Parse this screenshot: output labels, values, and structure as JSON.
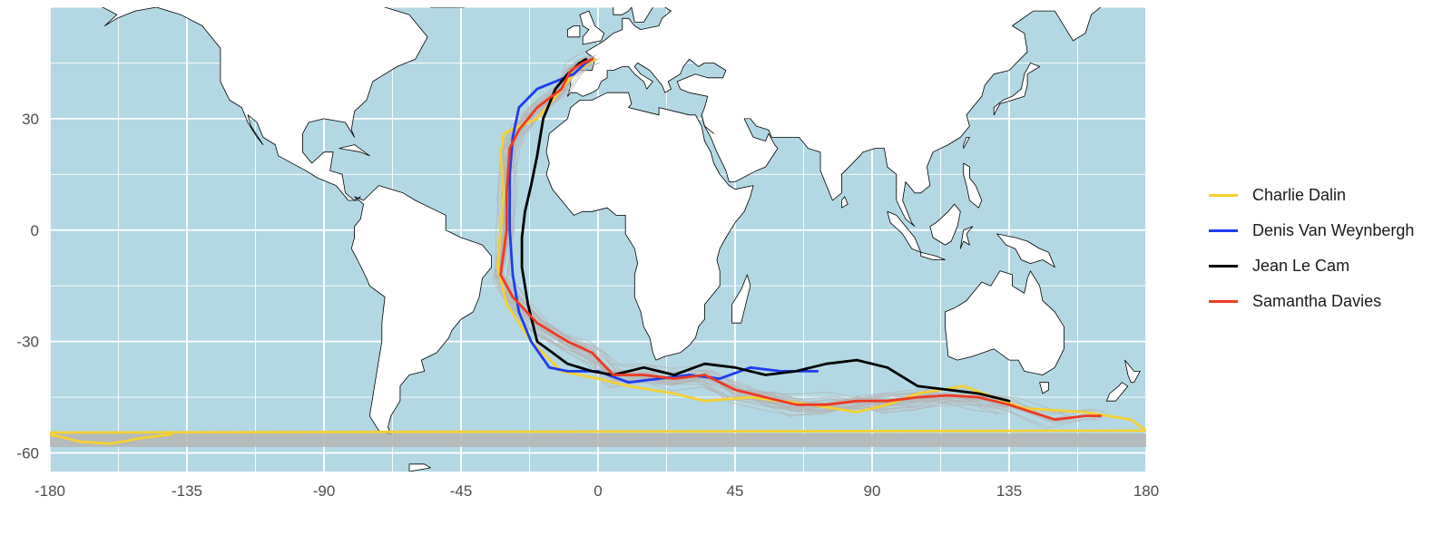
{
  "map": {
    "type": "track-map",
    "projection": "equirectangular",
    "xlim": [
      -180,
      180
    ],
    "ylim": [
      -65,
      60
    ],
    "x_ticks": [
      -180,
      -135,
      -90,
      -45,
      0,
      45,
      90,
      135,
      180
    ],
    "y_ticks": [
      -60,
      -30,
      0,
      30
    ],
    "ocean_color": "#b3d8e3",
    "land_color": "#ffffff",
    "border_color": "#000000",
    "grid": true,
    "legend_position": "right",
    "colors": {
      "Charlie Dalin": "#f5d033",
      "Denis Van Weynbergh": "#1f3cf0",
      "Jean Le Cam": "#000000",
      "Samantha Davies": "#ee3a24",
      "others": "#b5b5b5"
    }
  },
  "legend": {
    "items": [
      {
        "label": "Charlie Dalin",
        "color": "#f5d033"
      },
      {
        "label": "Denis Van Weynbergh",
        "color": "#1f3cf0"
      },
      {
        "label": "Jean Le Cam",
        "color": "#000000"
      },
      {
        "label": "Samantha Davies",
        "color": "#ee3a24"
      }
    ]
  },
  "chart_data": {
    "type": "line",
    "xlim": [
      -180,
      180
    ],
    "ylim": [
      -65,
      60
    ],
    "series": [
      {
        "name": "Charlie Dalin",
        "color": "#f5d033",
        "x": [
          -1,
          -3,
          -8,
          -12,
          -20,
          -26,
          -31,
          -32,
          -31,
          -32,
          -33,
          -30,
          -22,
          -12,
          0,
          10,
          25,
          35,
          50,
          70,
          85,
          95,
          105,
          120,
          140,
          160,
          175,
          180
        ],
        "y": [
          46,
          45,
          42,
          38,
          30,
          28,
          26,
          20,
          10,
          0,
          -10,
          -20,
          -30,
          -38,
          -40,
          -42,
          -44,
          -46,
          -45,
          -47,
          -49,
          -47,
          -44,
          -42,
          -48,
          -49,
          -51,
          -54
        ]
      },
      {
        "name": "Charlie Dalin",
        "color": "#f5d033",
        "x": [
          -180,
          -170,
          -160,
          -150,
          -140
        ],
        "y": [
          -55,
          -57,
          -57.5,
          -56,
          -55
        ]
      },
      {
        "name": "Charlie Dalin",
        "color": "#f5d033",
        "x": [
          -180,
          180
        ],
        "y": [
          -54.5,
          -54
        ]
      },
      {
        "name": "Denis Van Weynbergh",
        "color": "#1f3cf0",
        "x": [
          -2,
          -4,
          -8,
          -14,
          -20,
          -26,
          -28,
          -29,
          -29,
          -28,
          -26,
          -22,
          -16,
          -10,
          0,
          10,
          20,
          30,
          40,
          50,
          60,
          72
        ],
        "y": [
          46,
          45,
          42,
          40,
          38,
          33,
          25,
          15,
          0,
          -12,
          -22,
          -30,
          -37,
          -38,
          -38,
          -41,
          -40,
          -39,
          -40,
          -37,
          -38,
          -38
        ]
      },
      {
        "name": "Jean Le Cam",
        "color": "#000000",
        "x": [
          -4,
          -6,
          -10,
          -14,
          -18,
          -20,
          -22,
          -24,
          -25,
          -25,
          -23,
          -20,
          -15,
          -10,
          -2,
          5,
          15,
          25,
          35,
          45,
          55,
          65,
          75,
          85,
          95,
          105,
          115,
          125,
          135
        ],
        "y": [
          46,
          45,
          42,
          38,
          30,
          20,
          12,
          5,
          -2,
          -10,
          -20,
          -30,
          -33,
          -36,
          -38,
          -39,
          -37,
          -39,
          -36,
          -37,
          -39,
          -38,
          -36,
          -35,
          -37,
          -42,
          -43,
          -44,
          -46
        ]
      },
      {
        "name": "Samantha Davies",
        "color": "#ee3a24",
        "x": [
          -2,
          -5,
          -9,
          -12,
          -20,
          -26,
          -29,
          -30,
          -30,
          -32,
          -28,
          -20,
          -10,
          -2,
          5,
          15,
          25,
          35,
          45,
          55,
          65,
          75,
          85,
          95,
          105,
          115,
          125,
          135,
          150,
          160,
          165
        ],
        "y": [
          46,
          45,
          43,
          38,
          33,
          27,
          22,
          10,
          0,
          -12,
          -18,
          -25,
          -30,
          -33,
          -39,
          -39,
          -40,
          -39,
          -43,
          -45,
          -47,
          -47,
          -46,
          -46,
          -45,
          -44.5,
          -45,
          -47,
          -51,
          -50,
          -50
        ]
      }
    ]
  }
}
